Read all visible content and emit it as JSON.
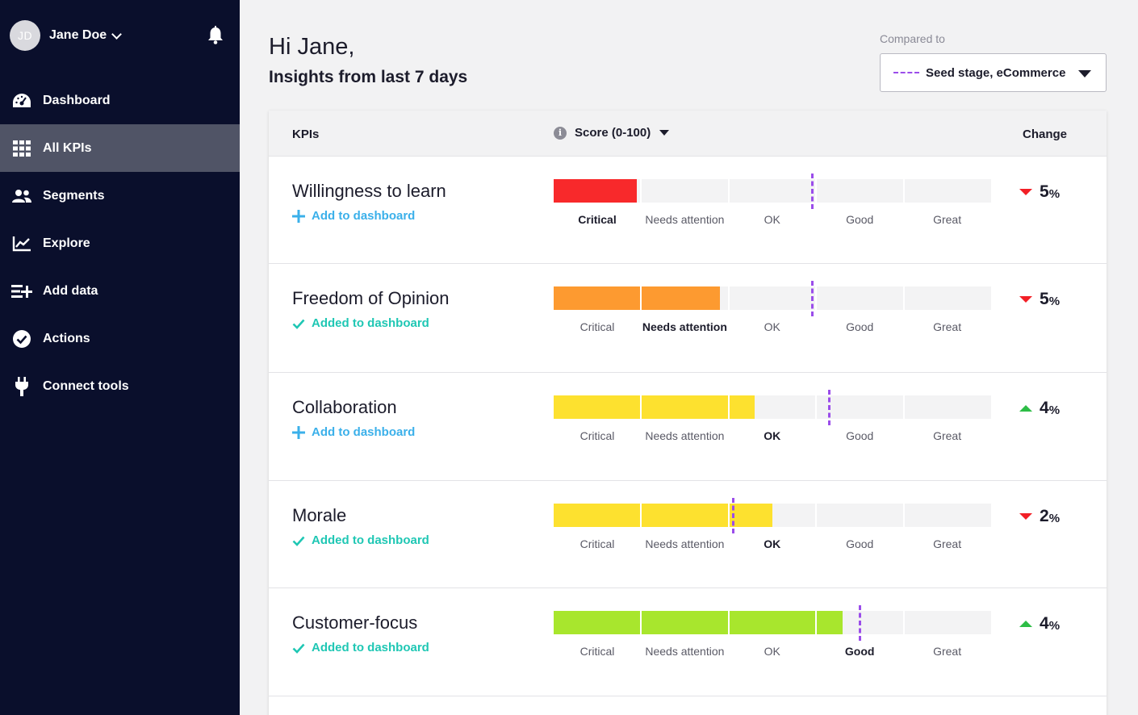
{
  "user": {
    "initials": "JD",
    "name": "Jane Doe"
  },
  "nav": [
    {
      "id": "dashboard",
      "label": "Dashboard",
      "icon": "gauge-icon",
      "active": false
    },
    {
      "id": "all-kpis",
      "label": "All KPIs",
      "icon": "grid-icon",
      "active": true
    },
    {
      "id": "segments",
      "label": "Segments",
      "icon": "users-icon",
      "active": false
    },
    {
      "id": "explore",
      "label": "Explore",
      "icon": "chart-line-icon",
      "active": false
    },
    {
      "id": "add-data",
      "label": "Add data",
      "icon": "add-data-icon",
      "active": false
    },
    {
      "id": "actions",
      "label": "Actions",
      "icon": "check-circle-icon",
      "active": false
    },
    {
      "id": "connect-tools",
      "label": "Connect tools",
      "icon": "plug-icon",
      "active": false
    }
  ],
  "header": {
    "greeting": "Hi Jane,",
    "subtitle": "Insights from last 7 days",
    "compare_label": "Compared to",
    "compare_value": "Seed stage, eCommerce"
  },
  "table": {
    "col_kpis": "KPIs",
    "col_score": "Score (0-100)",
    "col_change": "Change",
    "levels": [
      "Critical",
      "Needs attention",
      "OK",
      "Good",
      "Great"
    ],
    "add_label": "Add to dashboard",
    "added_label": "Added to dashboard",
    "rows": [
      {
        "name": "Willingness to learn",
        "on_dashboard": false,
        "score": 19,
        "benchmark": 59,
        "level": 0,
        "color": "#f8292b",
        "direction": "down",
        "change": "5",
        "unit": "%"
      },
      {
        "name": "Freedom of Opinion",
        "on_dashboard": true,
        "score": 38,
        "benchmark": 59,
        "level": 1,
        "color": "#fd9a30",
        "direction": "down",
        "change": "5",
        "unit": "%"
      },
      {
        "name": "Collaboration",
        "on_dashboard": false,
        "score": 46,
        "benchmark": 63,
        "level": 2,
        "color": "#fde12f",
        "direction": "up",
        "change": "4",
        "unit": "%"
      },
      {
        "name": "Morale",
        "on_dashboard": true,
        "score": 50,
        "benchmark": 41,
        "level": 2,
        "color": "#fde12f",
        "direction": "down",
        "change": "2",
        "unit": "%"
      },
      {
        "name": "Customer-focus",
        "on_dashboard": true,
        "score": 66,
        "benchmark": 70,
        "level": 3,
        "color": "#a8e62d",
        "direction": "up",
        "change": "4",
        "unit": "%"
      }
    ]
  }
}
